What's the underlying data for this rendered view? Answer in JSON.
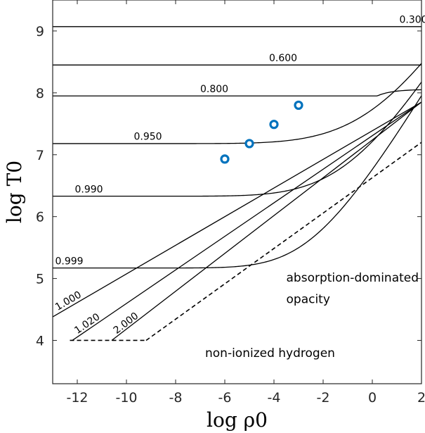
{
  "chart_data": {
    "type": "line",
    "xlabel": "log ρ0",
    "ylabel": "log T0",
    "xlim": [
      -13,
      2
    ],
    "ylim": [
      3.3,
      9.5
    ],
    "xticks": [
      -12,
      -10,
      -8,
      -6,
      -4,
      -2,
      0,
      2
    ],
    "yticks": [
      4,
      5,
      6,
      7,
      8,
      9
    ],
    "xtick_labels": [
      "-12",
      "-10",
      "-8",
      "-6",
      "-4",
      "-2",
      "0",
      "2"
    ],
    "ytick_labels": [
      "4",
      "5",
      "6",
      "7",
      "8",
      "9"
    ],
    "grid": false,
    "curves": [
      {
        "label": "0.300",
        "kind": "plateau",
        "T_flat": 9.07
      },
      {
        "label": "0.600",
        "kind": "plateau",
        "T_flat": 8.45
      },
      {
        "label": "0.800",
        "kind": "plateau",
        "T_flat": 7.95,
        "T_end": 8.05
      },
      {
        "label": "0.950",
        "kind": "plateau",
        "T_flat": 7.18
      },
      {
        "label": "0.990",
        "kind": "plateau",
        "T_flat": 6.33
      },
      {
        "label": "0.999",
        "kind": "plateau",
        "T_flat": 5.17
      },
      {
        "label": "1.000",
        "kind": "line",
        "x_start": -13.0,
        "y_start": 4.38
      },
      {
        "label": "1.020",
        "kind": "line",
        "x_start": -12.2,
        "y_start": 4.0
      },
      {
        "label": "2.000",
        "kind": "line",
        "x_start": -10.6,
        "y_start": 4.0
      }
    ],
    "power_law_end": {
      "x": 2,
      "y": 7.85
    },
    "boundary_lines": [
      {
        "name": "T0 = 4",
        "points": [
          [
            -12.3,
            4.0
          ],
          [
            -9.2,
            4.0
          ]
        ]
      },
      {
        "name": "absorption boundary",
        "points": [
          [
            -9.2,
            4.0
          ],
          [
            2.0,
            7.2
          ]
        ]
      }
    ],
    "scatter": {
      "x": [
        -6,
        -5,
        -4,
        -3
      ],
      "y": [
        6.93,
        7.18,
        7.49,
        7.8
      ],
      "color": "#0072BD"
    },
    "annotations": [
      {
        "text": "absorption-dominated",
        "x": -3.5,
        "y": 4.95
      },
      {
        "text": "opacity",
        "x": -3.5,
        "y": 4.6
      },
      {
        "text": "non-ionized hydrogen",
        "x": -6.8,
        "y": 3.73
      }
    ]
  }
}
